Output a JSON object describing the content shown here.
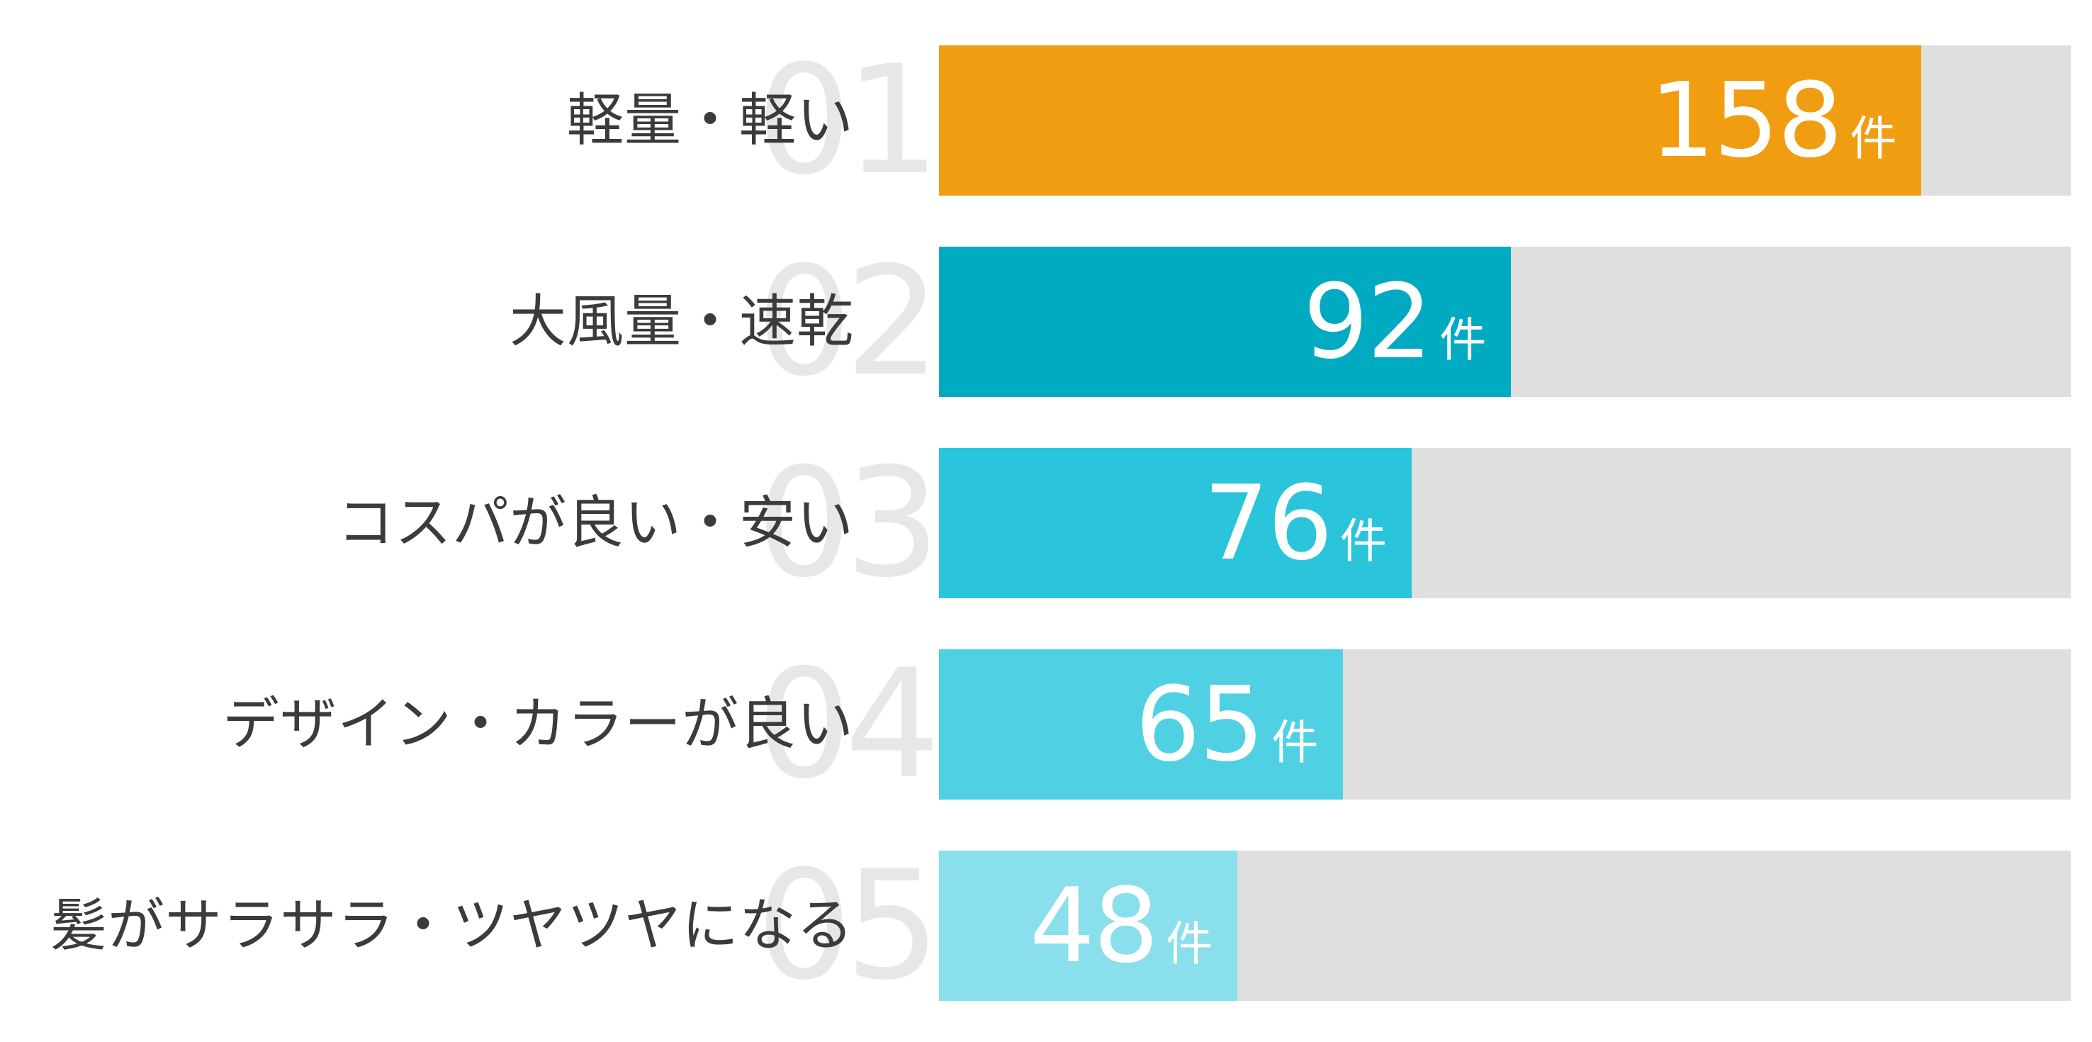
{
  "chart_data": {
    "type": "bar",
    "orientation": "horizontal",
    "title": "",
    "xlabel": "",
    "ylabel": "",
    "unit": "件",
    "xlim": [
      0,
      182
    ],
    "grid": false,
    "legend": "none",
    "categories": [
      "軽量・軽い",
      "大風量・速乾",
      "コスパが良い・安い",
      "デザイン・カラーが良い",
      "髪がサラサラ・ツヤツヤになる"
    ],
    "values": [
      158,
      92,
      76,
      65,
      48
    ],
    "rank_labels": [
      "01",
      "02",
      "03",
      "04",
      "05"
    ],
    "value_labels": [
      "158件",
      "92件",
      "76件",
      "65件",
      "48件"
    ],
    "bar_colors": [
      "#f19d12",
      "#00abc2",
      "#2bc5db",
      "#4fd1e3",
      "#8adfec"
    ],
    "track_color": "#dfdfdf",
    "value_text_color": "#ffffff",
    "label_text_color": "#3b3b3b",
    "watermark_color": "#e7e7e7"
  },
  "rows": [
    {
      "rank": "01",
      "label": "軽量・軽い",
      "value": "158",
      "unit": "件"
    },
    {
      "rank": "02",
      "label": "大風量・速乾",
      "value": "92",
      "unit": "件"
    },
    {
      "rank": "03",
      "label": "コスパが良い・安い",
      "value": "76",
      "unit": "件"
    },
    {
      "rank": "04",
      "label": "デザイン・カラーが良い",
      "value": "65",
      "unit": "件"
    },
    {
      "rank": "05",
      "label": "髪がサラサラ・ツヤツヤになる",
      "value": "48",
      "unit": "件"
    }
  ]
}
